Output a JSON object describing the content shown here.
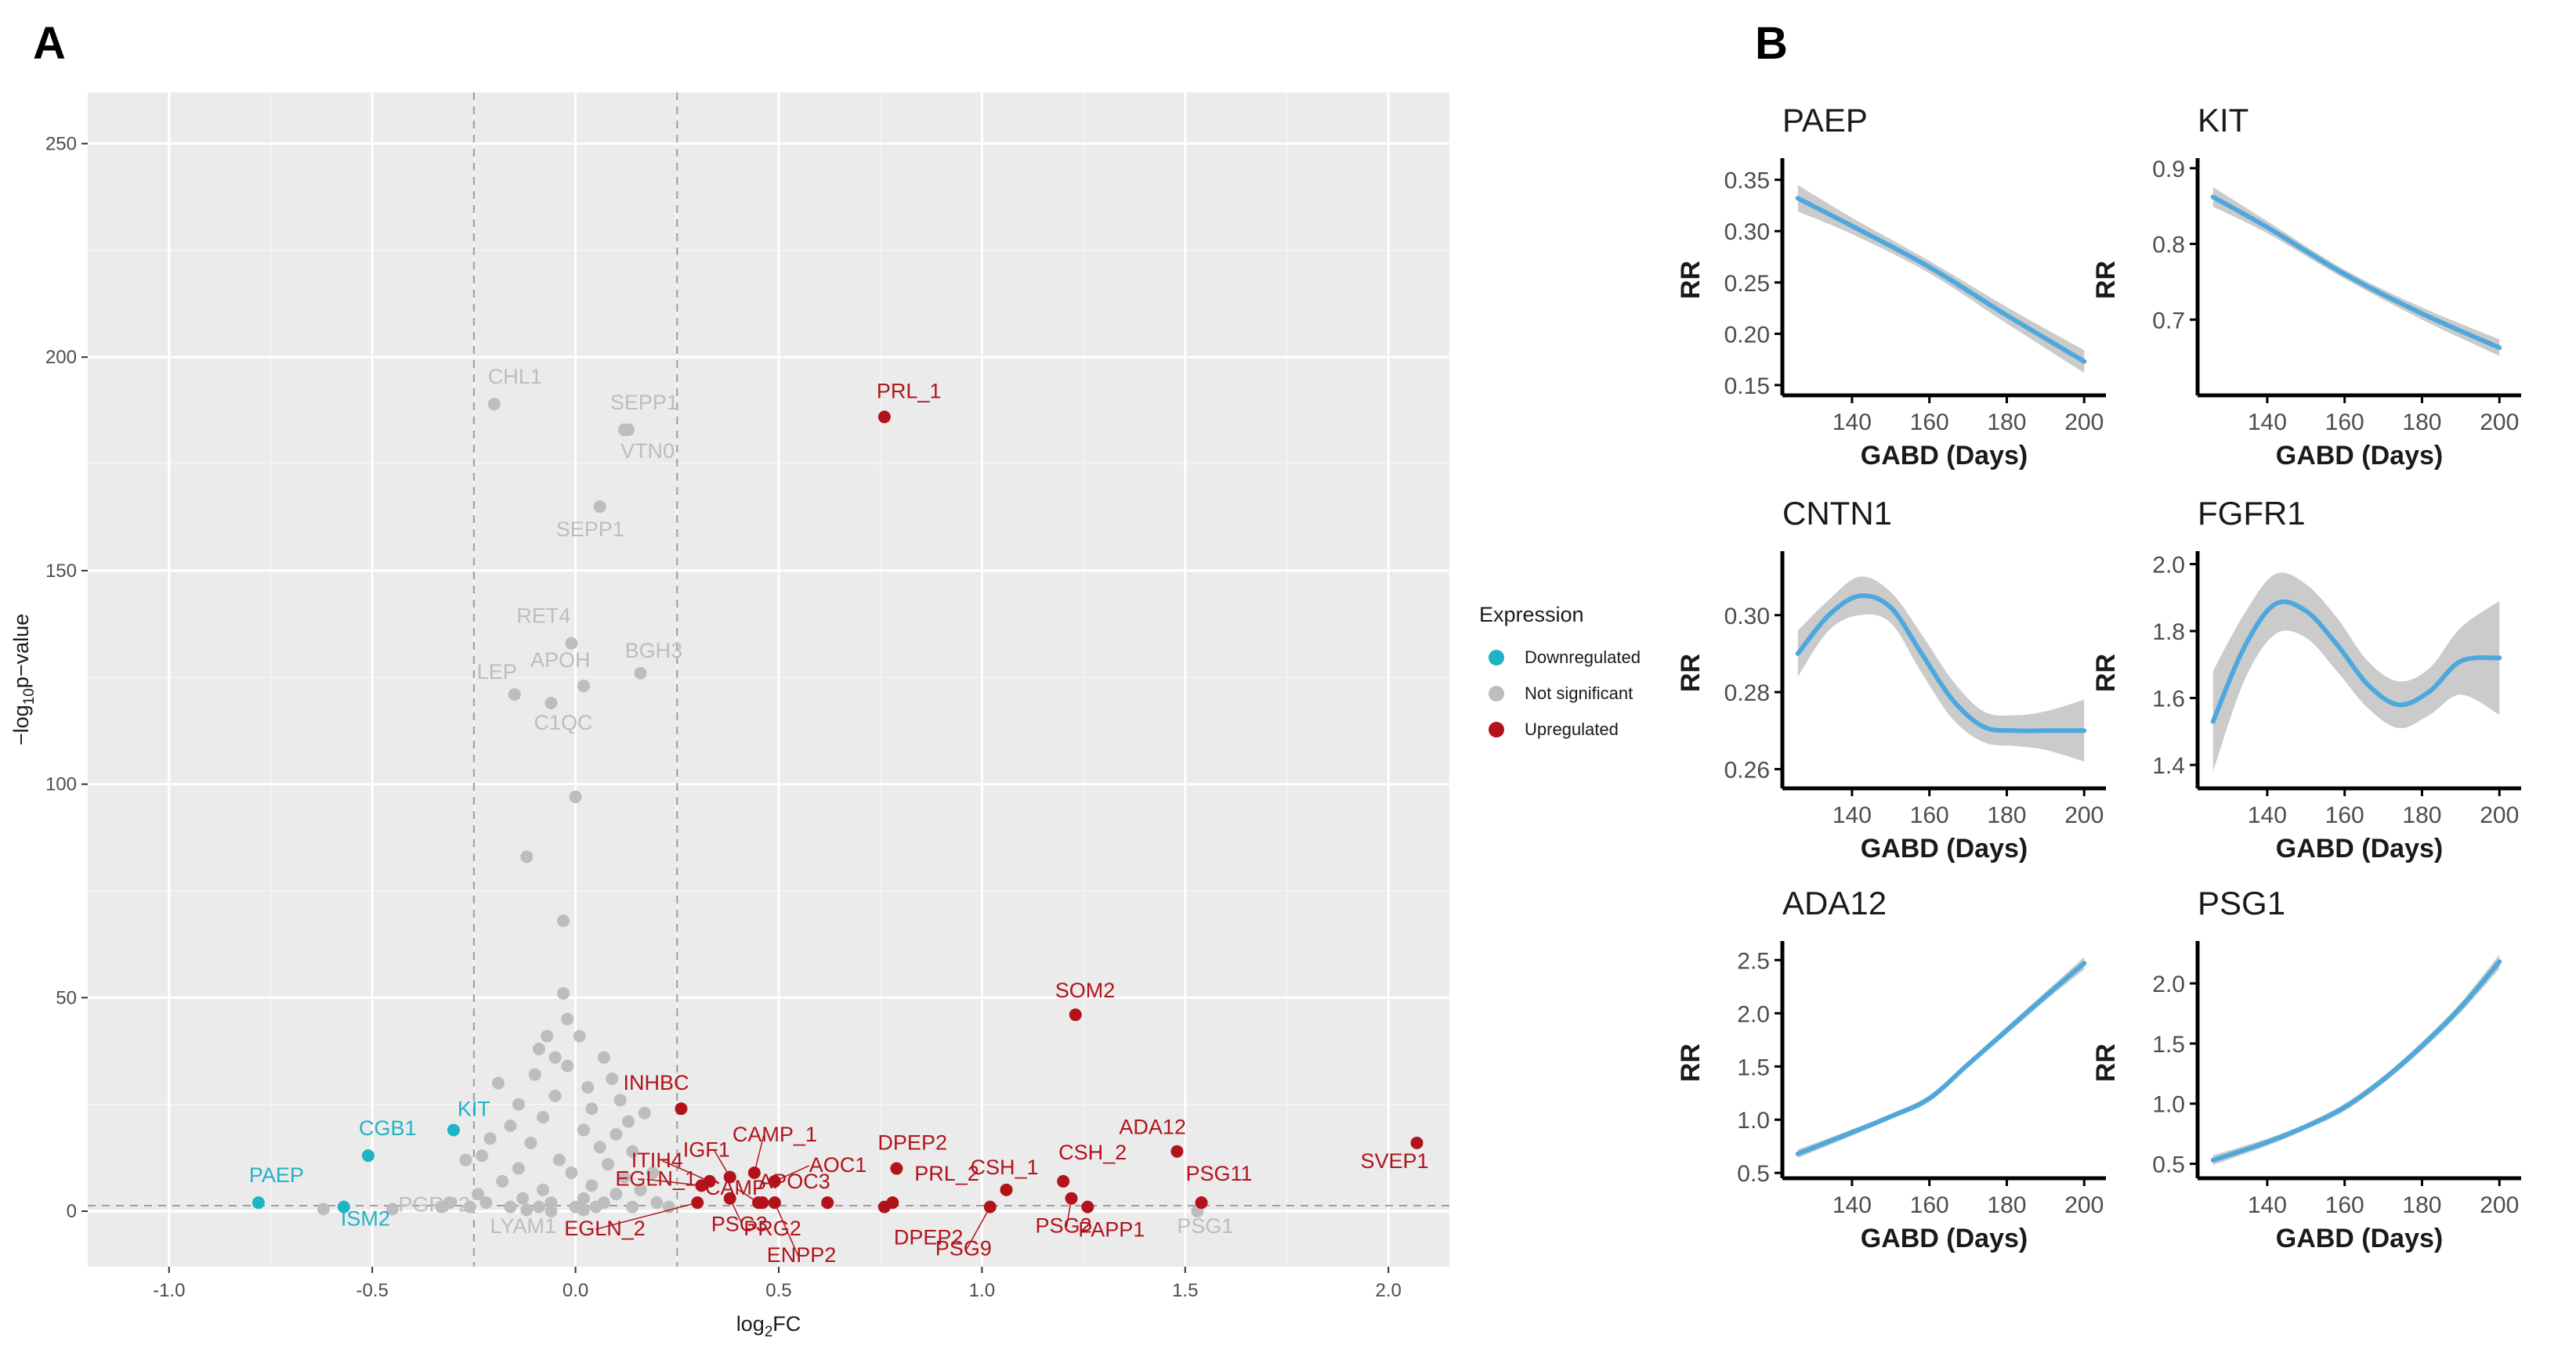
{
  "panel_letters": {
    "a": "A",
    "b": "B"
  },
  "legend": {
    "title": "Expression",
    "items": [
      {
        "label": "Downregulated",
        "color": "#1fb3c6"
      },
      {
        "label": "Not significant",
        "color": "#bdbdbd"
      },
      {
        "label": "Upregulated",
        "color": "#b2131b"
      }
    ]
  },
  "chart_data": [
    {
      "type": "scatter",
      "title": "",
      "xlabel_main": "log",
      "xlabel_sub": "2",
      "xlabel_tail": "FC",
      "ylabel_pre": "−log",
      "ylabel_sub": "10",
      "ylabel_tail": "p−value",
      "xlim": [
        -1.2,
        2.15
      ],
      "ylim": [
        -13,
        262
      ],
      "xticks": [
        -1.0,
        -0.5,
        0.0,
        0.5,
        1.0,
        1.5,
        2.0
      ],
      "xtick_labels": [
        "-1.0",
        "-0.5",
        "0.0",
        "0.5",
        "1.0",
        "1.5",
        "2.0"
      ],
      "yticks": [
        0,
        50,
        100,
        150,
        200,
        250
      ],
      "ytick_labels": [
        "0",
        "50",
        "100",
        "150",
        "200",
        "250"
      ],
      "fc_thresholds": [
        -0.25,
        0.25
      ],
      "p_threshold": 1.3,
      "colors": {
        "Downregulated": "#1fb3c6",
        "Not significant": "#bdbdbd",
        "Upregulated": "#b2131b"
      },
      "labeled_points": [
        {
          "label": "PAEP",
          "x": -0.78,
          "y": 2,
          "group": "Downregulated"
        },
        {
          "label": "ISM2",
          "x": -0.57,
          "y": 1,
          "group": "Downregulated"
        },
        {
          "label": "CGB1",
          "x": -0.51,
          "y": 13,
          "group": "Downregulated"
        },
        {
          "label": "KIT",
          "x": -0.3,
          "y": 19,
          "group": "Downregulated"
        },
        {
          "label": "CHL1",
          "x": -0.2,
          "y": 189,
          "group": "Not significant"
        },
        {
          "label": "SEPP1",
          "x": 0.12,
          "y": 183,
          "group": "Not significant"
        },
        {
          "label": "VTN0",
          "x": 0.13,
          "y": 183,
          "group": "Not significant"
        },
        {
          "label": "SEPP1",
          "x": 0.06,
          "y": 165,
          "group": "Not significant"
        },
        {
          "label": "RET4",
          "x": -0.01,
          "y": 133,
          "group": "Not significant"
        },
        {
          "label": "BGH3",
          "x": 0.16,
          "y": 126,
          "group": "Not significant"
        },
        {
          "label": "APOH",
          "x": 0.02,
          "y": 123,
          "group": "Not significant"
        },
        {
          "label": "LEP",
          "x": -0.15,
          "y": 121,
          "group": "Not significant"
        },
        {
          "label": "C1QC",
          "x": -0.06,
          "y": 119,
          "group": "Not significant"
        },
        {
          "label": "PGRP2",
          "x": -0.27,
          "y": 12,
          "group": "Not significant"
        },
        {
          "label": "LYAM1",
          "x": -0.06,
          "y": 0,
          "group": "Not significant"
        },
        {
          "label": "PSG1",
          "x": 1.53,
          "y": 0,
          "group": "Not significant"
        },
        {
          "label": "PRL_1",
          "x": 0.76,
          "y": 186,
          "group": "Upregulated"
        },
        {
          "label": "SOM2",
          "x": 1.23,
          "y": 46,
          "group": "Upregulated"
        },
        {
          "label": "INHBC",
          "x": 0.26,
          "y": 24,
          "group": "Upregulated"
        },
        {
          "label": "CAMP_1",
          "x": 0.44,
          "y": 9,
          "group": "Upregulated"
        },
        {
          "label": "IGF1",
          "x": 0.38,
          "y": 8,
          "group": "Upregulated"
        },
        {
          "label": "ITIH4",
          "x": 0.33,
          "y": 7,
          "group": "Upregulated"
        },
        {
          "label": "AOC1",
          "x": 0.49,
          "y": 7,
          "group": "Upregulated"
        },
        {
          "label": "CAMP",
          "x": 0.45,
          "y": 2,
          "group": "Upregulated"
        },
        {
          "label": "APOC3",
          "x": 0.62,
          "y": 2,
          "group": "Upregulated"
        },
        {
          "label": "DPEP2",
          "x": 0.79,
          "y": 10,
          "group": "Upregulated"
        },
        {
          "label": "EGLN_1",
          "x": 0.31,
          "y": 6,
          "group": "Upregulated"
        },
        {
          "label": "EGLN_2",
          "x": 0.3,
          "y": 2,
          "group": "Upregulated"
        },
        {
          "label": "PSG3",
          "x": 0.38,
          "y": 3,
          "group": "Upregulated"
        },
        {
          "label": "PRG2",
          "x": 0.46,
          "y": 2,
          "group": "Upregulated"
        },
        {
          "label": "ENPP2",
          "x": 0.49,
          "y": 2,
          "group": "Upregulated"
        },
        {
          "label": "PRL_2",
          "x": 0.78,
          "y": 2,
          "group": "Upregulated"
        },
        {
          "label": "DPEP2",
          "x": 0.76,
          "y": 1,
          "group": "Upregulated"
        },
        {
          "label": "PSG9",
          "x": 1.02,
          "y": 1,
          "group": "Upregulated"
        },
        {
          "label": "CSH_1",
          "x": 1.06,
          "y": 5,
          "group": "Upregulated"
        },
        {
          "label": "PSG2",
          "x": 1.22,
          "y": 3,
          "group": "Upregulated"
        },
        {
          "label": "CSH_2",
          "x": 1.2,
          "y": 7,
          "group": "Upregulated"
        },
        {
          "label": "PAPP1",
          "x": 1.26,
          "y": 1,
          "group": "Upregulated"
        },
        {
          "label": "ADA12",
          "x": 1.48,
          "y": 14,
          "group": "Upregulated"
        },
        {
          "label": "PSG11",
          "x": 1.54,
          "y": 2,
          "group": "Upregulated"
        },
        {
          "label": "SVEP1",
          "x": 2.07,
          "y": 16,
          "group": "Upregulated"
        }
      ],
      "unlabeled_points": [
        [
          0.0,
          97
        ],
        [
          -0.12,
          83
        ],
        [
          -0.03,
          68
        ],
        [
          -0.03,
          51
        ],
        [
          -0.02,
          45
        ],
        [
          -0.07,
          41
        ],
        [
          0.01,
          41
        ],
        [
          -0.09,
          38
        ],
        [
          -0.05,
          36
        ],
        [
          0.07,
          36
        ],
        [
          -0.02,
          34
        ],
        [
          -0.1,
          32
        ],
        [
          0.09,
          31
        ],
        [
          -0.19,
          30
        ],
        [
          0.03,
          29
        ],
        [
          -0.05,
          27
        ],
        [
          0.11,
          26
        ],
        [
          -0.14,
          25
        ],
        [
          0.04,
          24
        ],
        [
          0.17,
          23
        ],
        [
          -0.08,
          22
        ],
        [
          0.13,
          21
        ],
        [
          -0.16,
          20
        ],
        [
          0.02,
          19
        ],
        [
          0.1,
          18
        ],
        [
          -0.21,
          17
        ],
        [
          -0.11,
          16
        ],
        [
          0.06,
          15
        ],
        [
          0.14,
          14
        ],
        [
          -0.23,
          13
        ],
        [
          -0.04,
          12
        ],
        [
          0.08,
          11
        ],
        [
          -0.14,
          10
        ],
        [
          0.19,
          9
        ],
        [
          -0.01,
          9
        ],
        [
          0.12,
          8
        ],
        [
          -0.18,
          7
        ],
        [
          0.04,
          6
        ],
        [
          -0.08,
          5
        ],
        [
          0.16,
          5
        ],
        [
          -0.24,
          4
        ],
        [
          0.1,
          4
        ],
        [
          -0.13,
          3
        ],
        [
          0.02,
          3
        ],
        [
          -0.31,
          2
        ],
        [
          -0.22,
          2
        ],
        [
          -0.06,
          2
        ],
        [
          0.07,
          2
        ],
        [
          0.2,
          2
        ],
        [
          -0.62,
          0.5
        ],
        [
          -0.45,
          0.5
        ],
        [
          -0.33,
          1
        ],
        [
          -0.26,
          1
        ],
        [
          -0.16,
          1
        ],
        [
          -0.09,
          1
        ],
        [
          0.0,
          1
        ],
        [
          0.05,
          1
        ],
        [
          0.14,
          1
        ],
        [
          0.23,
          1
        ],
        [
          -0.12,
          0.3
        ],
        [
          0.02,
          0.3
        ]
      ]
    },
    {
      "type": "line",
      "title": "PAEP",
      "xlabel": "GABD (Days)",
      "ylabel": "RR",
      "xlim": [
        122,
        204
      ],
      "ylim": [
        0.14,
        0.365
      ],
      "xticks": [
        140,
        160,
        180,
        200
      ],
      "yticks": [
        0.15,
        0.2,
        0.25,
        0.3,
        0.35
      ],
      "ytick_labels": [
        "0.15",
        "0.20",
        "0.25",
        "0.30",
        "0.35"
      ],
      "x": [
        126,
        140,
        160,
        180,
        200
      ],
      "y": [
        0.332,
        0.305,
        0.265,
        0.218,
        0.173
      ],
      "ci_halfwidth": [
        0.013,
        0.008,
        0.006,
        0.008,
        0.011
      ]
    },
    {
      "type": "line",
      "title": "KIT",
      "xlabel": "GABD (Days)",
      "ylabel": "RR",
      "xlim": [
        122,
        204
      ],
      "ylim": [
        0.6,
        0.905
      ],
      "xticks": [
        140,
        160,
        180,
        200
      ],
      "yticks": [
        0.7,
        0.8,
        0.9
      ],
      "ytick_labels": [
        "0.7",
        "0.8",
        "0.9"
      ],
      "x": [
        126,
        140,
        160,
        180,
        200
      ],
      "y": [
        0.862,
        0.822,
        0.76,
        0.708,
        0.663
      ],
      "ci_halfwidth": [
        0.013,
        0.008,
        0.006,
        0.008,
        0.011
      ]
    },
    {
      "type": "line",
      "title": "CNTN1",
      "xlabel": "GABD (Days)",
      "ylabel": "RR",
      "xlim": [
        122,
        204
      ],
      "ylim": [
        0.255,
        0.315
      ],
      "xticks": [
        140,
        160,
        180,
        200
      ],
      "yticks": [
        0.26,
        0.28,
        0.3
      ],
      "ytick_labels": [
        "0.26",
        "0.28",
        "0.30"
      ],
      "x": [
        126,
        134,
        142,
        150,
        158,
        166,
        174,
        182,
        190,
        200
      ],
      "y": [
        0.29,
        0.3,
        0.305,
        0.302,
        0.29,
        0.278,
        0.271,
        0.27,
        0.27,
        0.27
      ],
      "ci_halfwidth": [
        0.006,
        0.004,
        0.005,
        0.004,
        0.005,
        0.005,
        0.004,
        0.004,
        0.005,
        0.008
      ]
    },
    {
      "type": "line",
      "title": "FGFR1",
      "xlabel": "GABD (Days)",
      "ylabel": "RR",
      "xlim": [
        122,
        204
      ],
      "ylim": [
        1.33,
        2.02
      ],
      "xticks": [
        140,
        160,
        180,
        200
      ],
      "yticks": [
        1.4,
        1.6,
        1.8,
        2.0
      ],
      "ytick_labels": [
        "1.4",
        "1.6",
        "1.8",
        "2.0"
      ],
      "x": [
        126,
        134,
        142,
        150,
        158,
        166,
        174,
        182,
        190,
        200
      ],
      "y": [
        1.53,
        1.75,
        1.88,
        1.86,
        1.76,
        1.64,
        1.58,
        1.62,
        1.71,
        1.72
      ],
      "ci_halfwidth": [
        0.15,
        0.1,
        0.09,
        0.08,
        0.08,
        0.07,
        0.07,
        0.07,
        0.1,
        0.17
      ]
    },
    {
      "type": "line",
      "title": "ADA12",
      "xlabel": "GABD (Days)",
      "ylabel": "RR",
      "xlim": [
        122,
        204
      ],
      "ylim": [
        0.45,
        2.62
      ],
      "xticks": [
        140,
        160,
        180,
        200
      ],
      "yticks": [
        0.5,
        1.0,
        1.5,
        2.0,
        2.5
      ],
      "ytick_labels": [
        "0.5",
        "1.0",
        "1.5",
        "2.0",
        "2.5"
      ],
      "x": [
        126,
        140,
        150,
        160,
        170,
        180,
        190,
        200
      ],
      "y": [
        0.68,
        0.88,
        1.03,
        1.2,
        1.52,
        1.84,
        2.16,
        2.47
      ],
      "ci_halfwidth": [
        0.04,
        0.03,
        0.025,
        0.03,
        0.03,
        0.035,
        0.04,
        0.06
      ]
    },
    {
      "type": "line",
      "title": "PSG1",
      "xlabel": "GABD (Days)",
      "ylabel": "RR",
      "xlim": [
        122,
        204
      ],
      "ylim": [
        0.38,
        2.3
      ],
      "xticks": [
        140,
        160,
        180,
        200
      ],
      "yticks": [
        0.5,
        1.0,
        1.5,
        2.0
      ],
      "ytick_labels": [
        "0.5",
        "1.0",
        "1.5",
        "2.0"
      ],
      "x": [
        126,
        140,
        150,
        160,
        170,
        180,
        190,
        200
      ],
      "y": [
        0.53,
        0.68,
        0.81,
        0.97,
        1.2,
        1.48,
        1.8,
        2.18
      ],
      "ci_halfwidth": [
        0.04,
        0.03,
        0.025,
        0.03,
        0.03,
        0.035,
        0.04,
        0.06
      ]
    }
  ]
}
